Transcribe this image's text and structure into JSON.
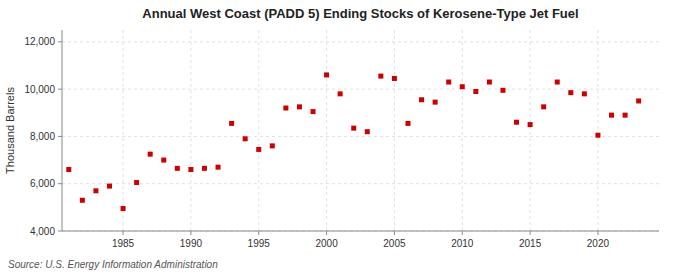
{
  "chart_data": {
    "type": "scatter",
    "title": "Annual West Coast (PADD 5) Ending Stocks of Kerosene-Type Jet Fuel",
    "y_label": "Thousand Barrels",
    "annotation": "Source: U.S. Energy Information Administration",
    "x": [
      1981,
      1982,
      1983,
      1984,
      1985,
      1986,
      1987,
      1988,
      1989,
      1990,
      1991,
      1992,
      1993,
      1994,
      1995,
      1996,
      1997,
      1998,
      1999,
      2000,
      2001,
      2002,
      2003,
      2004,
      2005,
      2006,
      2007,
      2008,
      2009,
      2010,
      2011,
      2012,
      2013,
      2014,
      2015,
      2016,
      2017,
      2018,
      2019,
      2020,
      2021,
      2022,
      2023
    ],
    "values": [
      6600,
      5300,
      5700,
      5900,
      4950,
      6050,
      7250,
      7000,
      6650,
      6600,
      6650,
      6700,
      8550,
      7900,
      7450,
      7600,
      9200,
      9250,
      9050,
      10600,
      9800,
      8350,
      8200,
      10550,
      10450,
      8550,
      9550,
      9450,
      10300,
      10100,
      9900,
      10300,
      9950,
      8600,
      8500,
      9250,
      10300,
      9850,
      9800,
      8050,
      8900,
      8900,
      9500
    ],
    "color": "#cc0000",
    "marker": "square",
    "xlim": [
      1980.5,
      2024.5
    ],
    "xticks": [
      1985,
      1990,
      1995,
      2000,
      2005,
      2010,
      2015,
      2020
    ],
    "ylim": [
      4000,
      12500
    ],
    "yticks": [
      {
        "value": 4000,
        "label": "4,000"
      },
      {
        "value": 6000,
        "label": "6,000"
      },
      {
        "value": 8000,
        "label": "8,000"
      },
      {
        "value": 10000,
        "label": "10,000"
      },
      {
        "value": 12000,
        "label": "12,000"
      }
    ],
    "grid": true
  }
}
